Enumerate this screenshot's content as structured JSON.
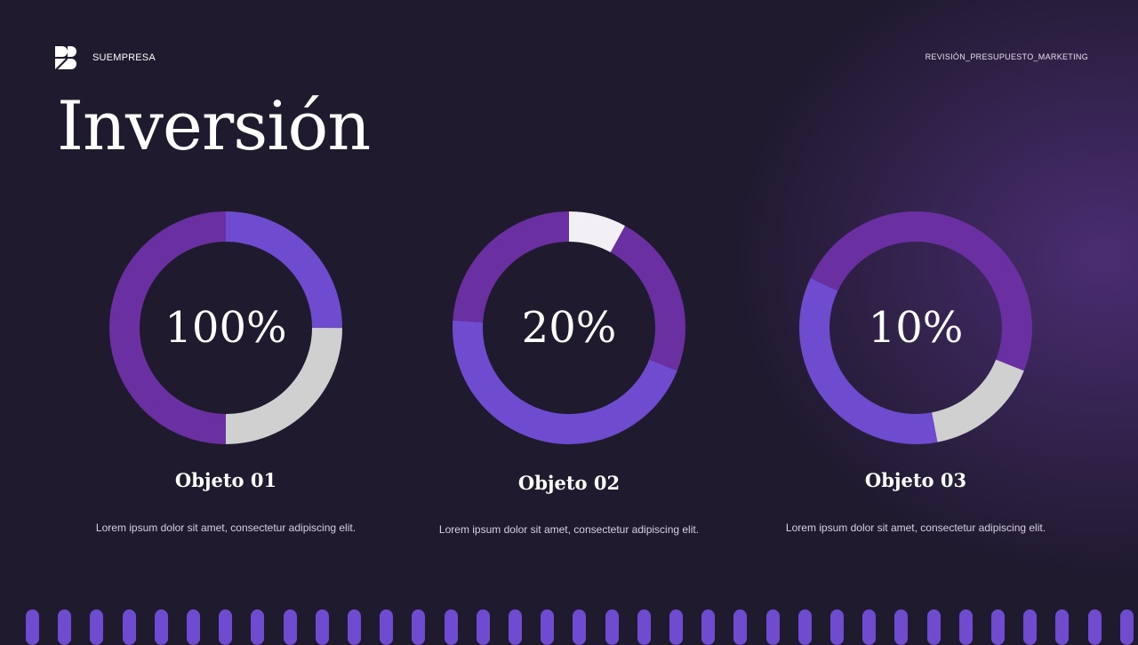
{
  "header": {
    "brand": "SUEMPRESA",
    "doc_label": "REVISIÓN_PRESUPUESTO_MARKETING",
    "logo_icon": "rb-logo-icon"
  },
  "title": "Inversión",
  "colors": {
    "background": "#1f1a2e",
    "violet": "#6f4bcf",
    "purple": "#6a2fa0",
    "light_gray": "#d0d0d0",
    "white": "#f2f0f5",
    "bar": "#6f4bcf"
  },
  "chart_data": [
    {
      "type": "pie",
      "center_label": "100%",
      "segments": [
        {
          "fraction": 0.25,
          "color": "#6f4bcf"
        },
        {
          "fraction": 0.25,
          "color": "#d0d0d0"
        },
        {
          "fraction": 0.5,
          "color": "#6a2fa0"
        }
      ],
      "label": "Objeto 01",
      "description": "Lorem ipsum dolor sit amet, consectetur adipiscing elit."
    },
    {
      "type": "pie",
      "center_label": "20%",
      "segments": [
        {
          "fraction": 0.08,
          "color": "#f2f0f5"
        },
        {
          "fraction": 0.23,
          "color": "#6a2fa0"
        },
        {
          "fraction": 0.45,
          "color": "#6f4bcf"
        },
        {
          "fraction": 0.24,
          "color": "#6a2fa0"
        }
      ],
      "label": "Objeto 02",
      "description": "Lorem ipsum dolor sit amet, consectetur adipiscing elit."
    },
    {
      "type": "pie",
      "center_label": "10%",
      "segments": [
        {
          "fraction": 0.31,
          "color": "#6a2fa0"
        },
        {
          "fraction": 0.16,
          "color": "#d0d0d0"
        },
        {
          "fraction": 0.35,
          "color": "#6f4bcf"
        },
        {
          "fraction": 0.18,
          "color": "#6a2fa0"
        }
      ],
      "label": "Objeto 03",
      "description": "Lorem ipsum dolor sit amet, consectetur adipiscing elit."
    }
  ]
}
